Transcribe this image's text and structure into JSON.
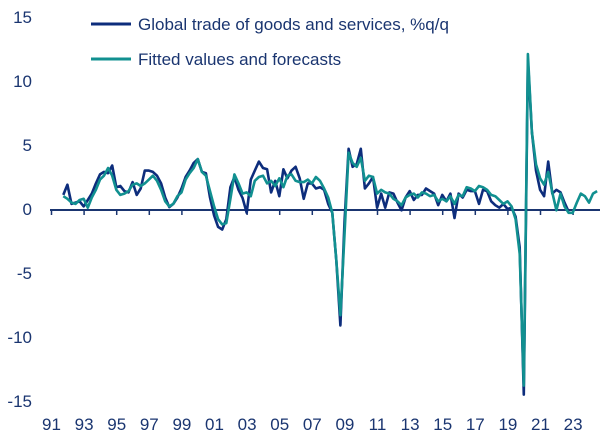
{
  "chart_data": {
    "type": "line",
    "title": "",
    "xlabel": "",
    "ylabel": "",
    "frequency": "quarterly",
    "x_start": "1992Q1",
    "ylim": [
      -15,
      15
    ],
    "yticks": [
      "15",
      "10",
      "5",
      "0",
      "-5",
      "-10",
      "-15"
    ],
    "ytick_values": [
      15,
      10,
      5,
      0,
      -5,
      -10,
      -15
    ],
    "xticks": [
      "91",
      "93",
      "95",
      "97",
      "99",
      "01",
      "03",
      "05",
      "07",
      "09",
      "11",
      "13",
      "15",
      "17",
      "19",
      "21",
      "23"
    ],
    "grid": false,
    "legend_position": "top-left",
    "series": [
      {
        "name": "Global trade of goods and services, %q/q",
        "color": "#0d2d7c",
        "values": [
          1.1,
          1.9,
          0.4,
          0.5,
          0.6,
          0.2,
          0.7,
          1.2,
          2.0,
          2.7,
          2.9,
          2.8,
          3.4,
          1.7,
          1.8,
          1.4,
          1.3,
          2.1,
          1.1,
          1.6,
          3.0,
          3.0,
          2.9,
          2.6,
          2.0,
          0.9,
          0.15,
          0.4,
          0.9,
          1.6,
          2.5,
          3.0,
          3.6,
          3.9,
          2.9,
          2.8,
          0.9,
          -0.5,
          -1.4,
          -1.6,
          -0.8,
          1.7,
          2.5,
          1.5,
          0.85,
          -0.3,
          2.3,
          3.0,
          3.7,
          3.2,
          3.1,
          1.3,
          2.2,
          1.0,
          3.1,
          2.4,
          3.0,
          3.3,
          2.4,
          0.8,
          2.0,
          2.0,
          1.6,
          1.7,
          1.5,
          0.4,
          -0.3,
          -4.0,
          -9.1,
          -1.0,
          4.7,
          3.3,
          3.5,
          4.7,
          1.6,
          2.0,
          2.5,
          0.1,
          1.2,
          0.1,
          1.3,
          1.2,
          0.5,
          -0.1,
          0.9,
          1.4,
          0.7,
          1.1,
          1.1,
          1.6,
          1.4,
          1.2,
          0.3,
          1.1,
          0.6,
          1.2,
          -0.7,
          1.2,
          0.9,
          1.5,
          1.4,
          1.4,
          0.4,
          1.5,
          1.4,
          0.6,
          0.3,
          0.1,
          0.4,
          0.0,
          0.1,
          -0.6,
          -3.0,
          -14.5,
          11.6,
          6.0,
          3.0,
          1.5,
          1.0,
          3.7,
          1.2,
          1.5,
          1.3,
          0.5,
          -0.2
        ]
      },
      {
        "name": "Fitted values and forecasts",
        "color": "#119090",
        "values": [
          1.0,
          0.8,
          0.5,
          0.4,
          0.7,
          0.8,
          0.1,
          0.9,
          1.5,
          2.3,
          2.6,
          3.2,
          2.6,
          1.5,
          1.1,
          1.2,
          1.4,
          1.9,
          2.0,
          1.8,
          2.0,
          2.3,
          2.6,
          2.2,
          1.5,
          0.6,
          0.2,
          0.4,
          1.0,
          1.3,
          2.3,
          2.8,
          3.2,
          3.9,
          2.9,
          2.6,
          1.4,
          0.2,
          -0.8,
          -1.2,
          -1.1,
          0.8,
          2.7,
          2.0,
          1.2,
          1.3,
          1.0,
          2.2,
          2.5,
          2.6,
          2.0,
          2.2,
          1.8,
          2.4,
          1.7,
          2.6,
          2.7,
          2.2,
          2.1,
          2.1,
          2.3,
          2.0,
          2.5,
          2.2,
          1.6,
          0.9,
          -0.3,
          -4.0,
          -8.3,
          -2.0,
          4.4,
          3.6,
          3.3,
          4.0,
          2.2,
          2.6,
          2.5,
          1.2,
          1.5,
          1.3,
          1.2,
          0.8,
          0.6,
          0.3,
          0.9,
          1.1,
          1.2,
          0.9,
          1.3,
          1.2,
          1.0,
          1.1,
          0.6,
          0.8,
          0.6,
          1.0,
          0.4,
          1.1,
          1.0,
          1.7,
          1.6,
          1.4,
          1.8,
          1.7,
          1.5,
          1.1,
          1.0,
          0.7,
          0.4,
          0.6,
          0.2,
          -0.8,
          -3.5,
          -13.8,
          12.1,
          6.0,
          3.5,
          2.4,
          1.9,
          2.9,
          1.3,
          -0.1,
          1.2,
          0.2,
          -0.3,
          -0.3,
          0.5,
          1.2,
          1.0,
          0.5,
          1.2,
          1.4
        ]
      }
    ],
    "axis_color": "#1a3570"
  }
}
